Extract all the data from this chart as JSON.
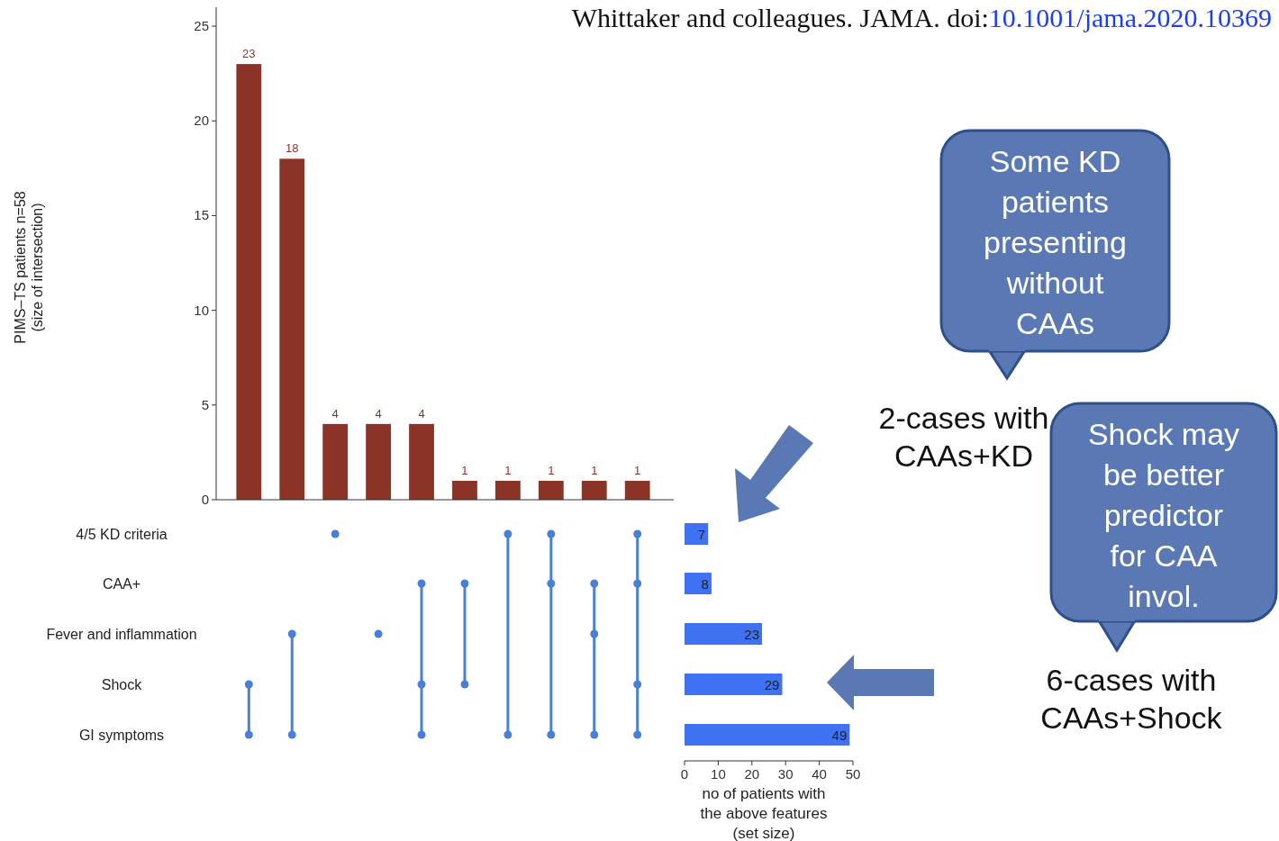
{
  "chart_data": [
    {
      "type": "bar",
      "categories": [
        null,
        null,
        null,
        null,
        null,
        null,
        null,
        null,
        null,
        null
      ],
      "values": [
        23,
        18,
        4,
        4,
        4,
        1,
        1,
        1,
        1,
        1
      ],
      "color": "#8b3326",
      "ylim": [
        0,
        26
      ],
      "yticks": [
        0,
        5,
        10,
        15,
        20,
        25
      ],
      "ylabel": "PIMS–TS patients n=58\n(size of intersection)",
      "data_labels": true,
      "annotations": [
        "Whittaker and colleagues. JAMA. doi:",
        "10.1001/jama.2020.10369",
        "Some KD patients presenting without CAAs",
        "2-cases with CAAs+KD",
        "Shock may be better predictor for CAA invol.",
        "6-cases with CAAs+Shock"
      ]
    },
    {
      "type": "bar",
      "orientation": "horizontal",
      "categories": [
        "4/5 KD criteria",
        "CAA+",
        "Fever and inflammation",
        "Shock",
        "GI symptoms"
      ],
      "values": [
        7,
        8,
        23,
        29,
        49
      ],
      "color": "#3f72f2",
      "xlim": [
        0,
        50
      ],
      "xticks": [
        0,
        10,
        20,
        30,
        40,
        50
      ],
      "xlabel": "no of patients with\nthe above features\n(set size)",
      "data_labels": true,
      "tick_labels": "x"
    }
  ]
}
